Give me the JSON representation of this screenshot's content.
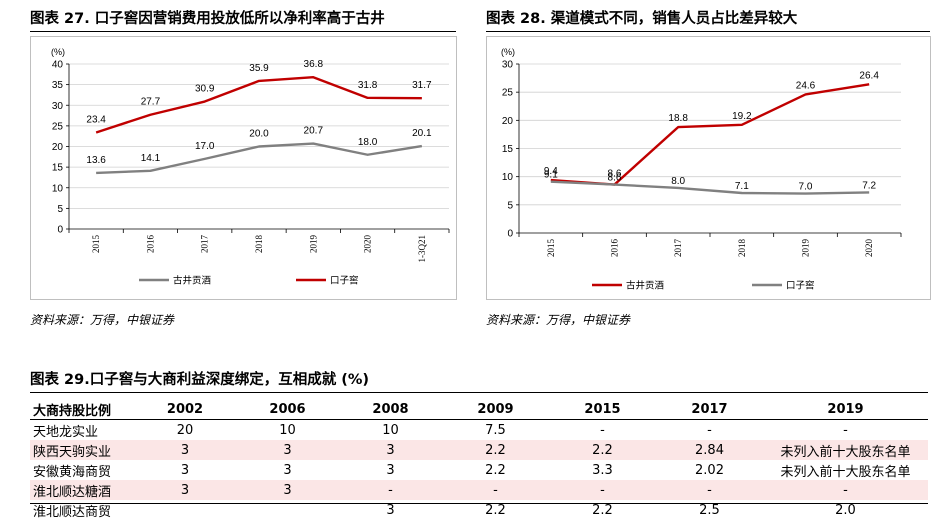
{
  "charts": [
    {
      "figure_title": "图表 27. 口子窖因营销费用投放低所以净利率高于古井",
      "source": "资料来源：万得，中银证券",
      "chart_data": {
        "type": "line",
        "ylabel": "(%)",
        "ylim": [
          0,
          40
        ],
        "yticks": [
          0,
          5,
          10,
          15,
          20,
          25,
          30,
          35,
          40
        ],
        "categories": [
          "2015",
          "2016",
          "2017",
          "2018",
          "2019",
          "2020",
          "1-3Q21"
        ],
        "grid": true,
        "legend_position": "bottom",
        "series": [
          {
            "name": "古井贡酒",
            "color": "#808080",
            "values": [
              13.6,
              14.1,
              17.0,
              20.0,
              20.7,
              18.0,
              20.1
            ],
            "labels": [
              "13.6",
              "14.1",
              "17.0",
              "20.0",
              "20.7",
              "18.0",
              "20.1"
            ]
          },
          {
            "name": "口子窖",
            "color": "#c00000",
            "values": [
              23.4,
              27.7,
              30.9,
              35.9,
              36.8,
              31.8,
              31.7
            ],
            "labels": [
              "23.4",
              "27.7",
              "30.9",
              "35.9",
              "36.8",
              "31.8",
              "31.7"
            ]
          }
        ]
      }
    },
    {
      "figure_title": "图表 28. 渠道模式不同，销售人员占比差异较大",
      "source": "资料来源：万得，中银证券",
      "chart_data": {
        "type": "line",
        "ylabel": "(%)",
        "ylim": [
          0,
          30
        ],
        "yticks": [
          0,
          5,
          10,
          15,
          20,
          25,
          30
        ],
        "categories": [
          "2015",
          "2016",
          "2017",
          "2018",
          "2019",
          "2020"
        ],
        "grid": true,
        "legend_position": "bottom",
        "series": [
          {
            "name": "古井贡酒",
            "color": "#c00000",
            "values": [
              9.4,
              8.6,
              18.8,
              19.2,
              24.6,
              26.4
            ],
            "labels": [
              "9.4",
              "8.6",
              "18.8",
              "19.2",
              "24.6",
              "26.4"
            ]
          },
          {
            "name": "口子窖",
            "color": "#808080",
            "values": [
              9.1,
              8.6,
              8.0,
              7.1,
              7.0,
              7.2
            ],
            "labels": [
              "9.1",
              "8.6",
              "8.0",
              "7.1",
              "7.0",
              "7.2"
            ]
          }
        ]
      }
    }
  ],
  "table": {
    "title": "图表 29.口子窖与大商利益深度绑定，互相成就 (%)",
    "headers": [
      "大商持股比例",
      "2002",
      "2006",
      "2008",
      "2009",
      "2015",
      "2017",
      "2019"
    ],
    "rows": [
      [
        "天地龙实业",
        "20",
        "10",
        "10",
        "7.5",
        "-",
        "-",
        "-"
      ],
      [
        "陕西天驹实业",
        "3",
        "3",
        "3",
        "2.2",
        "2.2",
        "2.84",
        "未列入前十大股东名单"
      ],
      [
        "安徽黄海商贸",
        "3",
        "3",
        "3",
        "2.2",
        "3.3",
        "2.02",
        "未列入前十大股东名单"
      ],
      [
        "淮北顺达糖酒",
        "3",
        "3",
        "-",
        "-",
        "-",
        "-",
        "-"
      ],
      [
        "淮北顺达商贸",
        "",
        "",
        "3",
        "2.2",
        "2.2",
        "2.5",
        "2.0"
      ]
    ]
  }
}
